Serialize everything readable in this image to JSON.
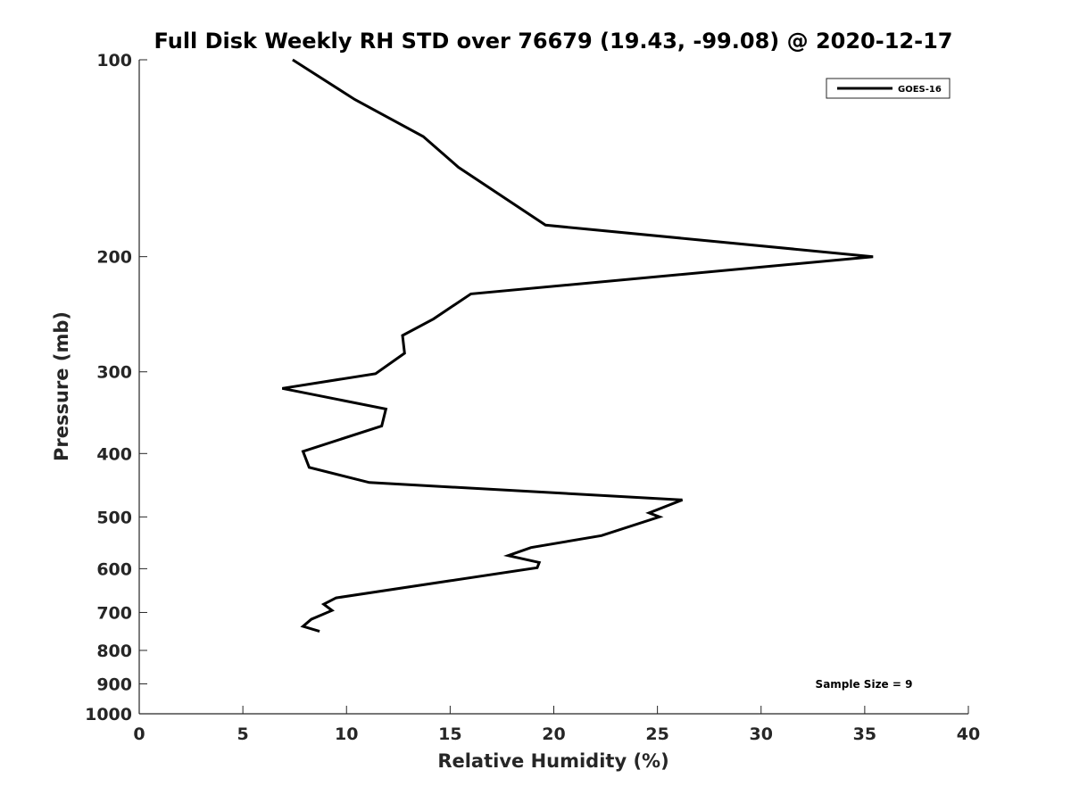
{
  "chart_data": {
    "type": "line",
    "title": "Full Disk Weekly RH STD over 76679 (19.43, -99.08) @ 2020-12-17",
    "xlabel": "Relative Humidity (%)",
    "ylabel": "Pressure (mb)",
    "xlim": [
      0,
      40
    ],
    "ylim": [
      100,
      1000
    ],
    "yscale": "log",
    "yreversed": true,
    "xticks": [
      0,
      5,
      10,
      15,
      20,
      25,
      30,
      35,
      40
    ],
    "yticks": [
      100,
      200,
      300,
      400,
      500,
      600,
      700,
      800,
      900,
      1000
    ],
    "grid": false,
    "legend_position": "top-right",
    "series": [
      {
        "name": "GOES-16",
        "color": "#000000",
        "x": [
          7.4,
          10.4,
          13.7,
          15.4,
          19.6,
          35.4,
          16.0,
          14.2,
          12.7,
          12.8,
          11.4,
          6.9,
          11.9,
          11.7,
          7.9,
          8.2,
          11.1,
          26.2,
          24.6,
          25.1,
          22.3,
          18.9,
          17.8,
          19.3,
          19.2,
          15.0,
          9.5,
          8.9,
          9.3,
          8.3,
          7.9,
          8.7
        ],
        "y": [
          100,
          115,
          131,
          146,
          179,
          200,
          228,
          249,
          264,
          281,
          302,
          318,
          342,
          363,
          397,
          420,
          443,
          471,
          493,
          500,
          534,
          557,
          573,
          587,
          598,
          626,
          665,
          680,
          695,
          717,
          735,
          748
        ]
      }
    ],
    "annotations": [
      {
        "text": "Sample Size = 9",
        "position": "bottom-right"
      }
    ]
  }
}
